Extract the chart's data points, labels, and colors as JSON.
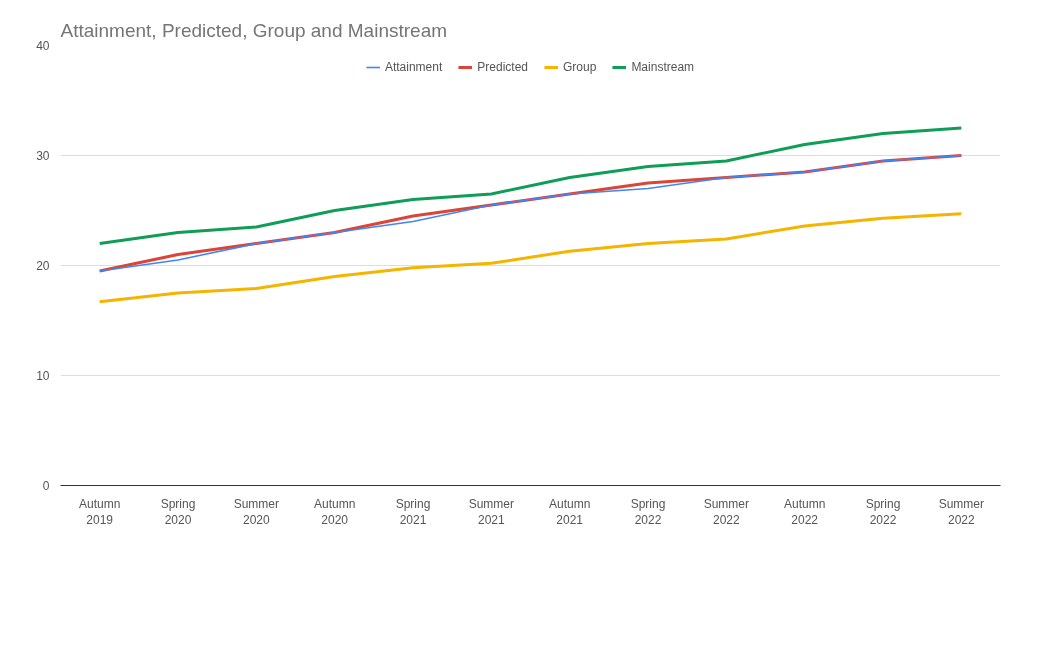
{
  "chart_data": {
    "type": "line",
    "title": "Attainment, Predicted, Group and Mainstream",
    "categories": [
      "Autumn\n2019",
      "Spring\n2020",
      "Summer\n2020",
      "Autumn\n2020",
      "Spring\n2021",
      "Summer\n2021",
      "Autumn\n2021",
      "Spring\n2022",
      "Summer\n2022",
      "Autumn\n2022",
      "Spring\n2022",
      "Summer\n2022"
    ],
    "series": [
      {
        "name": "Attainment",
        "color": "#4285f4",
        "values": [
          19.5,
          20.5,
          22,
          23,
          24,
          25.5,
          26.5,
          27,
          28,
          28.5,
          29.5,
          30
        ]
      },
      {
        "name": "Predicted",
        "color": "#db4437",
        "values": [
          19.5,
          21,
          22,
          23,
          24.5,
          25.5,
          26.5,
          27.5,
          28,
          28.5,
          29.5,
          30
        ]
      },
      {
        "name": "Group",
        "color": "#f4b400",
        "values": [
          16.7,
          17.5,
          17.9,
          19,
          19.8,
          20.2,
          21.3,
          22,
          22.4,
          23.6,
          24.3,
          24.7
        ]
      },
      {
        "name": "Mainstream",
        "color": "#0f9d58",
        "values": [
          22,
          23,
          23.5,
          25,
          26,
          26.5,
          28,
          29,
          29.5,
          31,
          32,
          32.5
        ]
      }
    ],
    "ylim": [
      0,
      40
    ],
    "yticks": [
      0,
      10,
      20,
      30,
      40
    ],
    "grid": "y",
    "legend": "top",
    "marker": "none",
    "line_style": "solid"
  }
}
